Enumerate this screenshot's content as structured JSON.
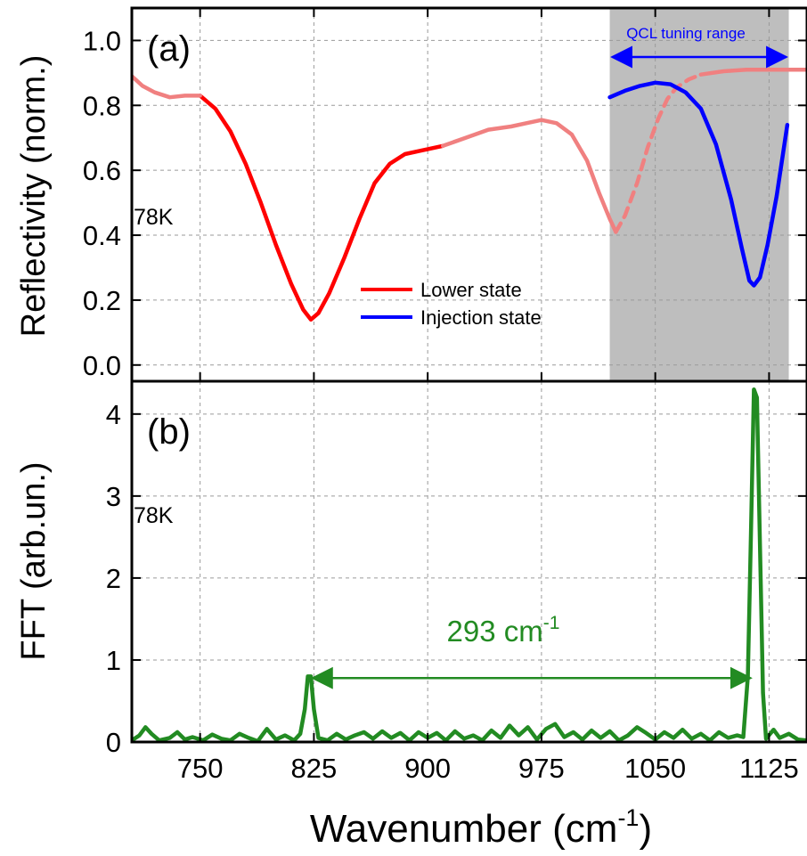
{
  "chart_data": [
    {
      "panel": "(a)",
      "type": "line",
      "ylabel": "Reflectivity (norm.)",
      "ylim": [
        -0.05,
        1.1
      ],
      "yticks": [
        "0.0",
        "0.2",
        "0.4",
        "0.6",
        "0.8",
        "1.0"
      ],
      "xlim": [
        705,
        1150
      ],
      "temperature_label": "78K",
      "shaded_region": {
        "x": [
          1020,
          1138
        ],
        "label": "QCL tuning range"
      },
      "series": [
        {
          "name": "Lower state",
          "color": "#ff0000",
          "style": "solid",
          "points": [
            [
              750,
              0.83
            ],
            [
              760,
              0.79
            ],
            [
              770,
              0.72
            ],
            [
              780,
              0.62
            ],
            [
              790,
              0.5
            ],
            [
              800,
              0.37
            ],
            [
              810,
              0.25
            ],
            [
              818,
              0.17
            ],
            [
              823,
              0.14
            ],
            [
              828,
              0.16
            ],
            [
              835,
              0.22
            ],
            [
              845,
              0.33
            ],
            [
              855,
              0.45
            ],
            [
              865,
              0.56
            ],
            [
              875,
              0.62
            ],
            [
              885,
              0.65
            ],
            [
              895,
              0.66
            ],
            [
              910,
              0.675
            ]
          ]
        },
        {
          "name": "",
          "color": "#f08080",
          "style": "solid",
          "points": [
            [
              705,
              0.89
            ],
            [
              712,
              0.86
            ],
            [
              720,
              0.84
            ],
            [
              730,
              0.825
            ],
            [
              740,
              0.83
            ],
            [
              750,
              0.83
            ]
          ]
        },
        {
          "name": "",
          "color": "#f08080",
          "style": "solid",
          "points": [
            [
              910,
              0.675
            ],
            [
              925,
              0.7
            ],
            [
              940,
              0.725
            ],
            [
              955,
              0.735
            ],
            [
              965,
              0.745
            ],
            [
              975,
              0.755
            ],
            [
              985,
              0.745
            ],
            [
              995,
              0.71
            ],
            [
              1005,
              0.63
            ],
            [
              1013,
              0.53
            ],
            [
              1020,
              0.45
            ],
            [
              1024,
              0.41
            ]
          ]
        },
        {
          "name": "",
          "color": "#f08080",
          "style": "dashed",
          "points": [
            [
              1024,
              0.41
            ],
            [
              1030,
              0.46
            ],
            [
              1038,
              0.56
            ],
            [
              1045,
              0.67
            ],
            [
              1052,
              0.76
            ],
            [
              1058,
              0.82
            ],
            [
              1064,
              0.855
            ],
            [
              1072,
              0.88
            ],
            [
              1080,
              0.895
            ]
          ]
        },
        {
          "name": "",
          "color": "#f08080",
          "style": "solid",
          "points": [
            [
              1080,
              0.895
            ],
            [
              1095,
              0.905
            ],
            [
              1110,
              0.91
            ],
            [
              1125,
              0.91
            ],
            [
              1140,
              0.91
            ],
            [
              1150,
              0.91
            ]
          ]
        },
        {
          "name": "Injection state",
          "color": "#0000ff",
          "style": "solid",
          "points": [
            [
              1020,
              0.825
            ],
            [
              1030,
              0.845
            ],
            [
              1040,
              0.86
            ],
            [
              1050,
              0.87
            ],
            [
              1060,
              0.865
            ],
            [
              1070,
              0.84
            ],
            [
              1080,
              0.79
            ],
            [
              1090,
              0.68
            ],
            [
              1100,
              0.51
            ],
            [
              1107,
              0.36
            ],
            [
              1112,
              0.26
            ],
            [
              1115,
              0.245
            ],
            [
              1119,
              0.27
            ],
            [
              1124,
              0.37
            ],
            [
              1130,
              0.52
            ],
            [
              1137,
              0.74
            ]
          ]
        }
      ],
      "legend": [
        {
          "label": "Lower state",
          "color": "#ff0000"
        },
        {
          "label": "Injection state",
          "color": "#0000ff"
        }
      ]
    },
    {
      "panel": "(b)",
      "type": "line",
      "ylabel": "FFT (arb.un.)",
      "xlabel": "Wavenumber (cm",
      "xlabel_sup": "-1",
      "xlabel_end": ")",
      "ylim": [
        0,
        4.4
      ],
      "yticks": [
        "0",
        "1",
        "2",
        "3",
        "4"
      ],
      "xlim": [
        705,
        1150
      ],
      "xticks": [
        "750",
        "825",
        "900",
        "975",
        "1050",
        "1125"
      ],
      "temperature_label": "78K",
      "annotation": {
        "text": "293 cm",
        "sup": "-1",
        "x_from": 822,
        "x_to": 1115,
        "y": 0.78
      },
      "series": [
        {
          "name": "",
          "color": "#228b22",
          "points": [
            [
              705,
              0.02
            ],
            [
              710,
              0.08
            ],
            [
              714,
              0.18
            ],
            [
              718,
              0.1
            ],
            [
              723,
              0.02
            ],
            [
              730,
              0.05
            ],
            [
              735,
              0.12
            ],
            [
              740,
              0.03
            ],
            [
              745,
              0.06
            ],
            [
              752,
              0.02
            ],
            [
              758,
              0.09
            ],
            [
              764,
              0.04
            ],
            [
              770,
              0.02
            ],
            [
              776,
              0.1
            ],
            [
              782,
              0.05
            ],
            [
              788,
              0.01
            ],
            [
              794,
              0.16
            ],
            [
              800,
              0.03
            ],
            [
              806,
              0.08
            ],
            [
              812,
              0.02
            ],
            [
              816,
              0.1
            ],
            [
              819,
              0.4
            ],
            [
              821,
              0.8
            ],
            [
              823,
              0.8
            ],
            [
              825,
              0.4
            ],
            [
              828,
              0.05
            ],
            [
              834,
              0.02
            ],
            [
              840,
              0.1
            ],
            [
              846,
              0.03
            ],
            [
              852,
              0.08
            ],
            [
              858,
              0.12
            ],
            [
              864,
              0.04
            ],
            [
              870,
              0.13
            ],
            [
              876,
              0.05
            ],
            [
              882,
              0.11
            ],
            [
              888,
              0.02
            ],
            [
              894,
              0.12
            ],
            [
              900,
              0.05
            ],
            [
              906,
              0.11
            ],
            [
              912,
              0.02
            ],
            [
              918,
              0.13
            ],
            [
              924,
              0.04
            ],
            [
              930,
              0.08
            ],
            [
              936,
              0.02
            ],
            [
              942,
              0.14
            ],
            [
              948,
              0.05
            ],
            [
              954,
              0.2
            ],
            [
              960,
              0.08
            ],
            [
              966,
              0.18
            ],
            [
              972,
              0.03
            ],
            [
              978,
              0.16
            ],
            [
              984,
              0.22
            ],
            [
              990,
              0.06
            ],
            [
              996,
              0.12
            ],
            [
              1002,
              0.03
            ],
            [
              1008,
              0.14
            ],
            [
              1014,
              0.05
            ],
            [
              1020,
              0.13
            ],
            [
              1026,
              0.02
            ],
            [
              1032,
              0.08
            ],
            [
              1038,
              0.18
            ],
            [
              1044,
              0.11
            ],
            [
              1050,
              0.03
            ],
            [
              1056,
              0.12
            ],
            [
              1062,
              0.05
            ],
            [
              1068,
              0.15
            ],
            [
              1074,
              0.04
            ],
            [
              1080,
              0.1
            ],
            [
              1086,
              0.02
            ],
            [
              1092,
              0.12
            ],
            [
              1098,
              0.05
            ],
            [
              1104,
              0.08
            ],
            [
              1108,
              0.06
            ],
            [
              1111,
              0.8
            ],
            [
              1113,
              2.5
            ],
            [
              1115,
              4.3
            ],
            [
              1117,
              4.2
            ],
            [
              1119,
              2.4
            ],
            [
              1121,
              0.6
            ],
            [
              1123,
              0.04
            ],
            [
              1128,
              0.15
            ],
            [
              1132,
              0.05
            ],
            [
              1138,
              0.1
            ],
            [
              1144,
              0.03
            ],
            [
              1150,
              0.02
            ]
          ]
        }
      ]
    }
  ]
}
